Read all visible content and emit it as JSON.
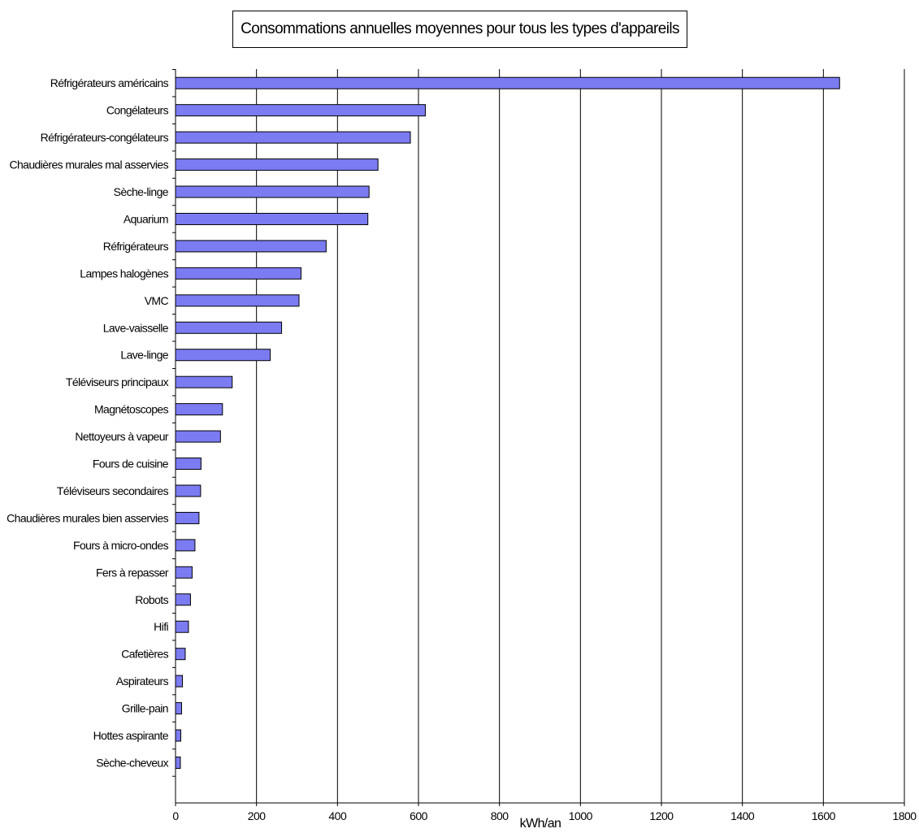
{
  "chart_data": {
    "type": "bar",
    "orientation": "horizontal",
    "title": "Consommations annuelles moyennes pour tous les types d'appareils",
    "xlabel": "kWh/an",
    "ylabel": "",
    "xlim": [
      0,
      1800
    ],
    "xticks": [
      "0",
      "200",
      "400",
      "600",
      "800",
      "1000",
      "1200",
      "1400",
      "1600",
      "1800"
    ],
    "grid": "vertical",
    "bar_color": "#7b7bf2",
    "categories": [
      "Réfrigérateurs américains",
      "Congélateurs",
      "Réfrigérateurs-congélateurs",
      "Chaudières murales mal asservies",
      "Sèche-linge",
      "Aquarium",
      "Réfrigérateurs",
      "Lampes halogènes",
      "VMC",
      "Lave-vaisselle",
      "Lave-linge",
      "Téléviseurs principaux",
      "Magnétoscopes",
      "Nettoyeurs à vapeur",
      "Fours de cuisine",
      "Téléviseurs secondaires",
      "Chaudières murales bien asservies",
      "Fours à micro-ondes",
      "Fers à repasser",
      "Robots",
      "Hifi",
      "Cafetières",
      "Aspirateurs",
      "Grille-pain",
      "Hottes aspirante",
      "Sèche-cheveux"
    ],
    "values": [
      1640,
      617,
      580,
      500,
      478,
      475,
      372,
      310,
      305,
      262,
      234,
      140,
      116,
      111,
      63,
      62,
      58,
      48,
      41,
      37,
      32,
      24,
      17,
      15,
      13,
      12
    ]
  }
}
